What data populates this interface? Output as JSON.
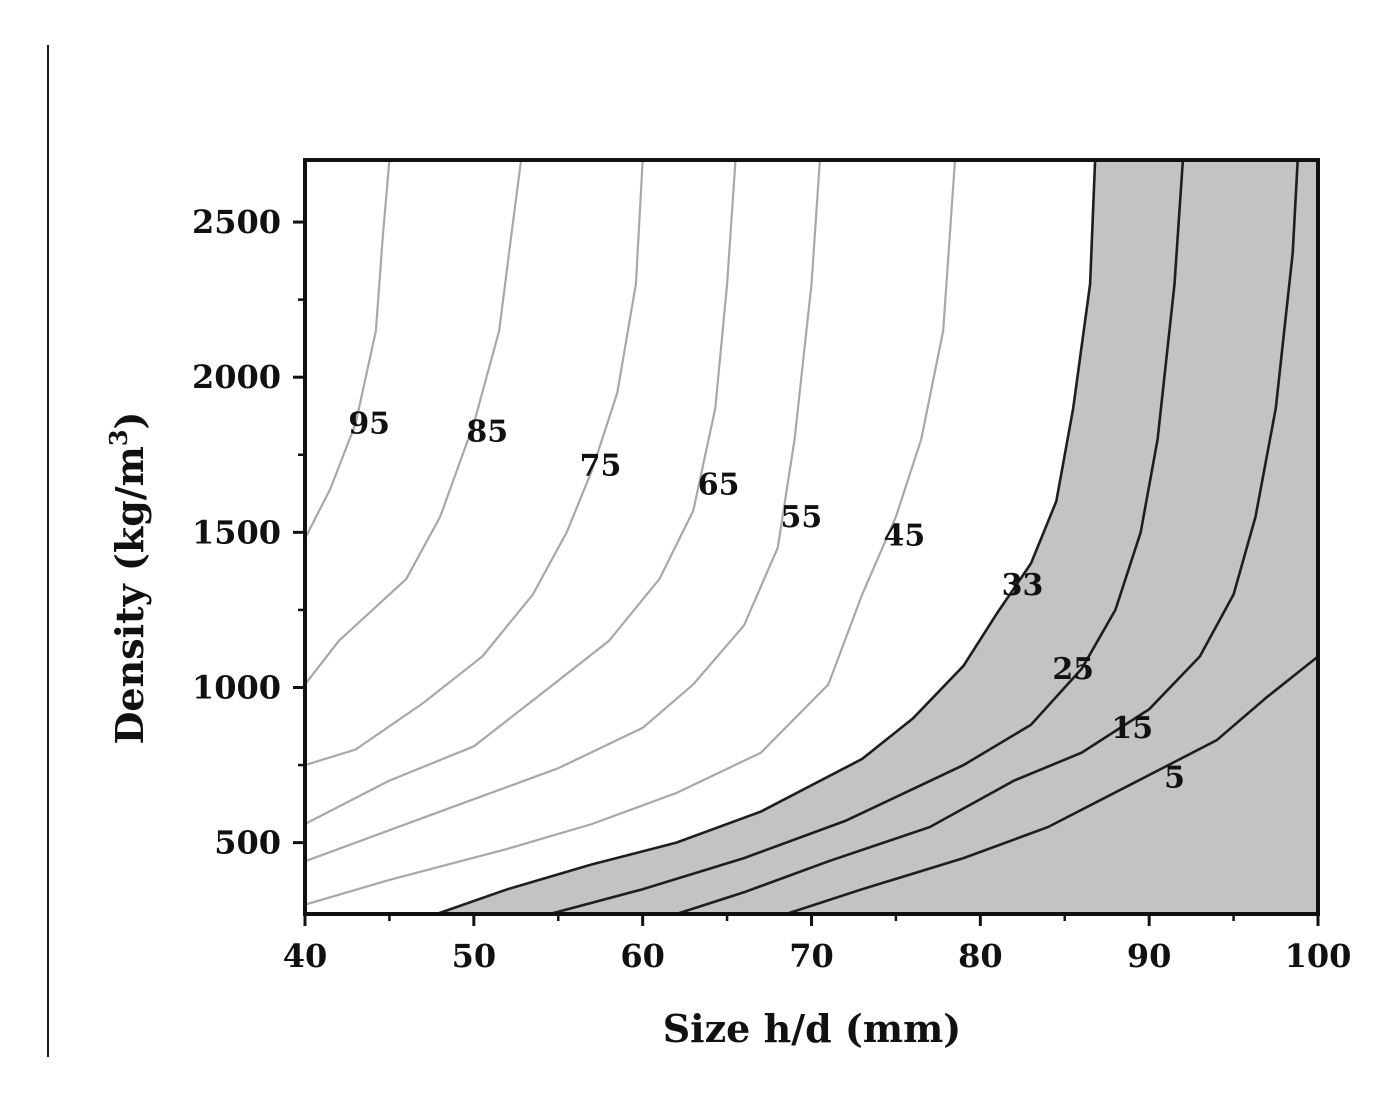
{
  "chart_data": {
    "type": "contour",
    "xlabel": "Size h/d (mm)",
    "ylabel_main": "Density (kg/m",
    "ylabel_sup": "3",
    "ylabel_close": ")",
    "xlim": [
      40,
      100
    ],
    "ylim": [
      270,
      2700
    ],
    "xticks": [
      40,
      50,
      60,
      70,
      80,
      90,
      100
    ],
    "yticks": [
      500,
      1000,
      1500,
      2000,
      2500
    ],
    "grid": false,
    "colors": {
      "shaded_region": "#c3c3c3",
      "light_contour": "#a8a8a8",
      "dark_contour": "#1e1e1e",
      "axis": "#111111"
    },
    "shaded_region_boundary_level": "33",
    "contours": [
      {
        "label": "95",
        "shade": "light",
        "points": [
          [
            40,
            1480
          ],
          [
            41.5,
            1640
          ],
          [
            43,
            1850
          ],
          [
            44.2,
            2150
          ],
          [
            44.6,
            2450
          ],
          [
            45,
            2700
          ]
        ],
        "label_at": [
          43.8,
          1850
        ]
      },
      {
        "label": "85",
        "shade": "light",
        "points": [
          [
            40,
            1010
          ],
          [
            42,
            1150
          ],
          [
            46,
            1350
          ],
          [
            48,
            1550
          ],
          [
            50,
            1850
          ],
          [
            51.5,
            2150
          ],
          [
            52.2,
            2450
          ],
          [
            52.8,
            2700
          ]
        ],
        "label_at": [
          50.8,
          1825
        ]
      },
      {
        "label": "75",
        "shade": "light",
        "points": [
          [
            40,
            750
          ],
          [
            43,
            800
          ],
          [
            47,
            950
          ],
          [
            50.5,
            1100
          ],
          [
            53.5,
            1300
          ],
          [
            55.5,
            1500
          ],
          [
            57,
            1700
          ],
          [
            58.5,
            1950
          ],
          [
            59.6,
            2300
          ],
          [
            60,
            2700
          ]
        ],
        "label_at": [
          57.5,
          1715
        ]
      },
      {
        "label": "65",
        "shade": "light",
        "points": [
          [
            40,
            560
          ],
          [
            45,
            700
          ],
          [
            50,
            810
          ],
          [
            54,
            980
          ],
          [
            58,
            1150
          ],
          [
            61,
            1350
          ],
          [
            63,
            1570
          ],
          [
            64.3,
            1900
          ],
          [
            65,
            2300
          ],
          [
            65.5,
            2700
          ]
        ],
        "label_at": [
          64.5,
          1655
        ]
      },
      {
        "label": "55",
        "shade": "light",
        "points": [
          [
            40,
            440
          ],
          [
            45,
            540
          ],
          [
            50,
            640
          ],
          [
            55,
            740
          ],
          [
            60,
            870
          ],
          [
            63,
            1010
          ],
          [
            66,
            1200
          ],
          [
            68,
            1450
          ],
          [
            69,
            1800
          ],
          [
            70,
            2300
          ],
          [
            70.5,
            2700
          ]
        ],
        "label_at": [
          69.4,
          1550
        ]
      },
      {
        "label": "45",
        "shade": "light",
        "points": [
          [
            40,
            300
          ],
          [
            45,
            380
          ],
          [
            52,
            480
          ],
          [
            57,
            560
          ],
          [
            62,
            660
          ],
          [
            67,
            790
          ],
          [
            71,
            1010
          ],
          [
            73,
            1300
          ],
          [
            75,
            1550
          ],
          [
            76.5,
            1800
          ],
          [
            77.8,
            2150
          ],
          [
            78.5,
            2700
          ]
        ],
        "label_at": [
          75.5,
          1490
        ]
      },
      {
        "label": "33",
        "shade": "dark",
        "points": [
          [
            47.8,
            270
          ],
          [
            52,
            350
          ],
          [
            57,
            430
          ],
          [
            62,
            500
          ],
          [
            67,
            600
          ],
          [
            73,
            770
          ],
          [
            76,
            900
          ],
          [
            79,
            1070
          ],
          [
            81,
            1240
          ],
          [
            83,
            1400
          ],
          [
            84.5,
            1600
          ],
          [
            85.5,
            1900
          ],
          [
            86.5,
            2300
          ],
          [
            86.8,
            2700
          ]
        ],
        "label_at": [
          82.5,
          1330
        ]
      },
      {
        "label": "25",
        "shade": "dark",
        "points": [
          [
            54.5,
            270
          ],
          [
            60,
            350
          ],
          [
            66,
            450
          ],
          [
            72,
            570
          ],
          [
            79,
            750
          ],
          [
            83,
            880
          ],
          [
            86,
            1060
          ],
          [
            88,
            1250
          ],
          [
            89.5,
            1500
          ],
          [
            90.5,
            1800
          ],
          [
            91.5,
            2300
          ],
          [
            92,
            2700
          ]
        ],
        "label_at": [
          85.5,
          1060
        ]
      },
      {
        "label": "15",
        "shade": "dark",
        "points": [
          [
            62,
            270
          ],
          [
            66,
            340
          ],
          [
            71,
            440
          ],
          [
            77,
            550
          ],
          [
            82,
            700
          ],
          [
            86,
            790
          ],
          [
            90,
            930
          ],
          [
            93,
            1100
          ],
          [
            95,
            1300
          ],
          [
            96.3,
            1550
          ],
          [
            97.5,
            1900
          ],
          [
            98.5,
            2400
          ],
          [
            98.8,
            2700
          ]
        ],
        "label_at": [
          89,
          870
        ]
      },
      {
        "label": "5",
        "shade": "dark",
        "points": [
          [
            68.5,
            270
          ],
          [
            73,
            350
          ],
          [
            79,
            450
          ],
          [
            84,
            550
          ],
          [
            89,
            690
          ],
          [
            94,
            830
          ],
          [
            97,
            970
          ],
          [
            100,
            1100
          ]
        ],
        "label_at": [
          91.5,
          710
        ]
      }
    ]
  }
}
